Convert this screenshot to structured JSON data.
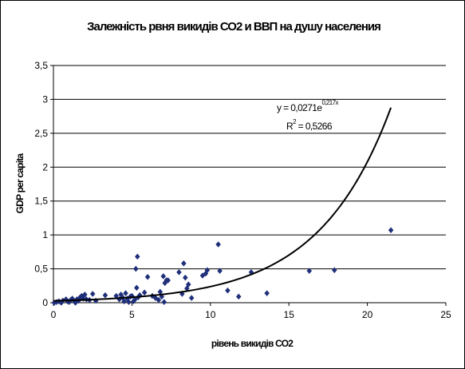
{
  "chart_data": {
    "type": "scatter",
    "title": "Залежність рвня викидів СО2 и ВВП на душу населения",
    "xlabel": "рівень викидів СО2",
    "ylabel": "GDP per capita",
    "xlim": [
      0,
      25
    ],
    "ylim": [
      0,
      3.5
    ],
    "x_ticks": [
      "0",
      "5",
      "10",
      "15",
      "20",
      "25"
    ],
    "y_ticks": [
      "0",
      "0,5",
      "1",
      "1,5",
      "2",
      "2,5",
      "3",
      "3,5"
    ],
    "grid": "horizontal",
    "legend": "none",
    "marker": "diamond",
    "marker_color": "#1f2f7a",
    "series": [
      {
        "x": [
          0.05,
          0.2,
          0.35,
          0.5,
          0.6,
          0.8,
          0.9,
          1.0,
          1.1,
          1.2,
          1.3,
          1.4,
          1.45,
          1.5,
          1.6,
          1.7,
          1.8,
          1.9,
          2.0,
          2.1,
          2.3,
          2.5,
          2.7,
          3.3,
          4.0,
          4.2,
          4.3,
          4.4,
          4.5,
          4.6,
          4.7,
          4.8,
          4.9,
          5.0,
          5.1,
          5.2,
          5.25,
          5.3,
          5.35,
          5.4,
          5.5,
          5.8,
          6.0,
          6.3,
          6.5,
          6.7,
          6.8,
          6.9,
          7.0,
          7.05,
          7.1,
          7.2,
          7.3,
          8.0,
          8.2,
          8.3,
          8.4,
          8.5,
          8.6,
          8.8,
          9.5,
          9.7,
          9.8,
          10.5,
          10.6,
          11.1,
          11.8,
          12.6,
          13.6,
          16.3,
          17.9,
          21.5
        ],
        "y": [
          0.0,
          0.01,
          0.02,
          0.0,
          0.03,
          0.05,
          0.02,
          0.01,
          0.04,
          0.06,
          0.03,
          0.0,
          0.02,
          0.05,
          0.03,
          0.08,
          0.1,
          0.06,
          0.12,
          0.05,
          0.04,
          0.13,
          0.03,
          0.11,
          0.1,
          0.05,
          0.12,
          0.08,
          0.02,
          0.14,
          0.06,
          0.01,
          0.09,
          0.1,
          0.02,
          0.05,
          0.5,
          0.22,
          0.68,
          0.08,
          0.11,
          0.15,
          0.38,
          0.1,
          0.07,
          0.04,
          0.16,
          0.09,
          0.39,
          0.01,
          0.29,
          0.33,
          0.33,
          0.45,
          0.13,
          0.58,
          0.37,
          0.21,
          0.27,
          0.07,
          0.4,
          0.43,
          0.48,
          0.86,
          0.47,
          0.18,
          0.09,
          0.45,
          0.14,
          0.47,
          0.48,
          1.07
        ]
      }
    ],
    "trendline": {
      "type": "exponential",
      "a": 0.0271,
      "b": 0.217,
      "x_range": [
        0,
        21.5
      ],
      "r2": 0.5266,
      "equation_text": "y = 0,0271e",
      "equation_exp": "0,217x",
      "r2_prefix": "R",
      "r2_sup": "2",
      "r2_value": " = 0,5266"
    }
  }
}
